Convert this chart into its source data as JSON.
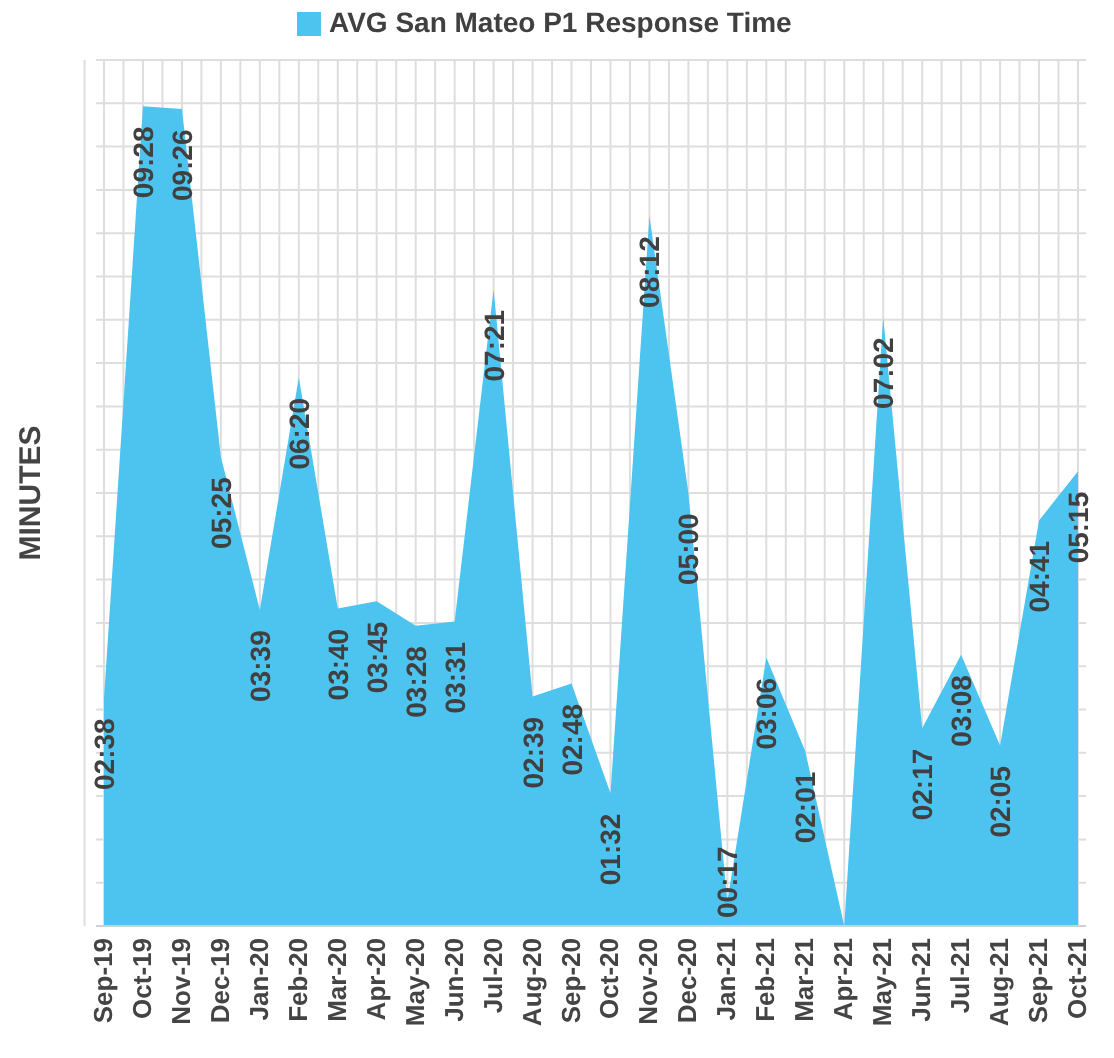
{
  "chart_data": {
    "type": "area",
    "ylabel": "MINUTES",
    "legend": "top",
    "categories": [
      "Sep-19",
      "Oct-19",
      "Nov-19",
      "Dec-19",
      "Jan-20",
      "Feb-20",
      "Mar-20",
      "Apr-20",
      "May-20",
      "Jun-20",
      "Jul-20",
      "Aug-20",
      "Sep-20",
      "Oct-20",
      "Nov-20",
      "Dec-20",
      "Jan-21",
      "Feb-21",
      "Mar-21",
      "Apr-21",
      "May-21",
      "Jun-21",
      "Jul-21",
      "Aug-21",
      "Sep-21",
      "Oct-21"
    ],
    "series": [
      {
        "name": "AVG San Mateo P1 Response Time",
        "color": "#4dc3f0",
        "values": [
          2.633,
          9.467,
          9.433,
          5.417,
          3.65,
          6.333,
          3.667,
          3.75,
          3.467,
          3.517,
          7.35,
          2.65,
          2.8,
          1.533,
          8.2,
          5,
          0.283,
          3.1,
          2.017,
          0,
          7.033,
          2.283,
          3.133,
          2.083,
          4.683,
          5.25
        ],
        "value_labels": [
          "02:38",
          "09:28",
          "09:26",
          "05:25",
          "03:39",
          "06:20",
          "03:40",
          "03:45",
          "03:28",
          "03:31",
          "07:21",
          "02:39",
          "02:48",
          "01:32",
          "08:12",
          "05:00",
          "00:17",
          "03:06",
          "02:01",
          null,
          "07:02",
          "02:17",
          "03:08",
          "02:05",
          "04:41",
          "05:15"
        ]
      }
    ],
    "ylim": [
      0,
      10
    ],
    "tick_labels": "x",
    "grid": true
  }
}
